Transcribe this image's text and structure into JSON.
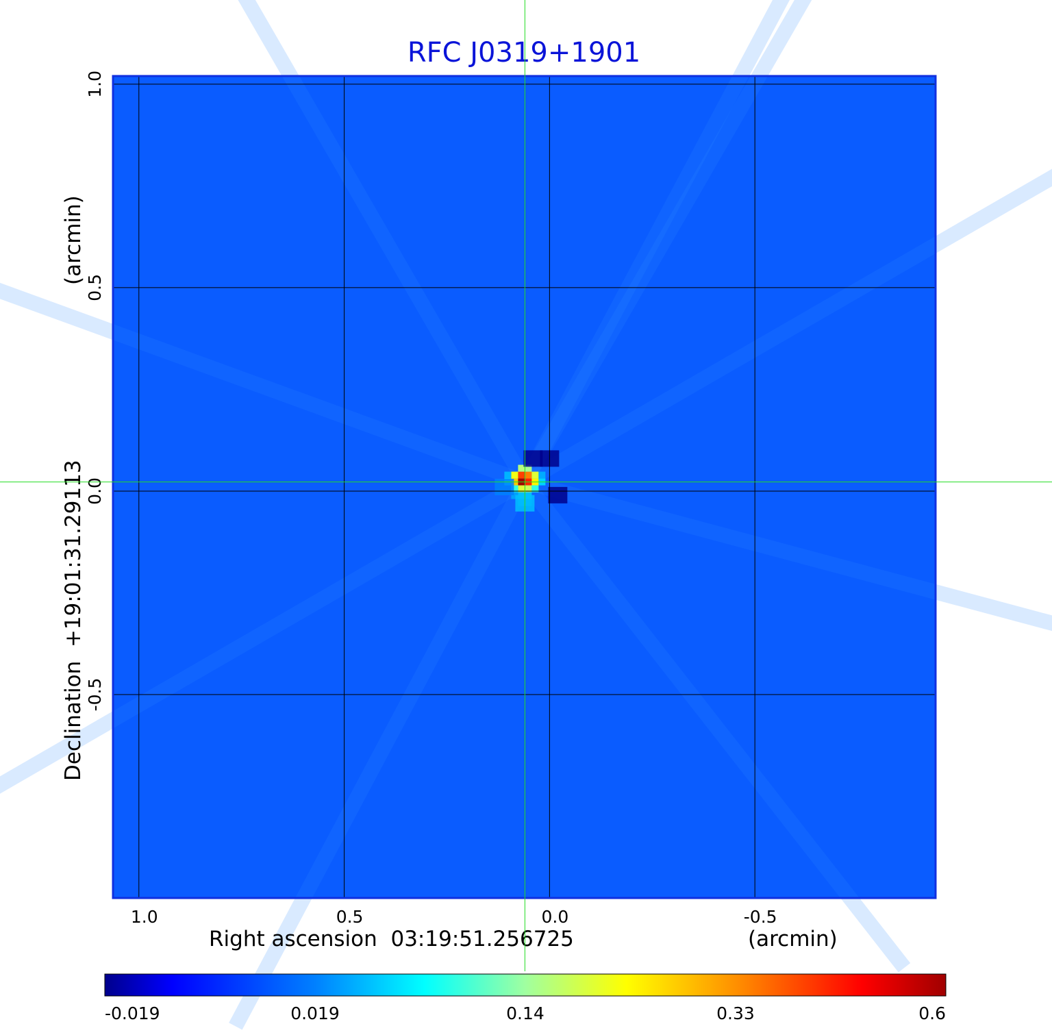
{
  "chart_data": {
    "type": "heatmap",
    "title": "RFC J0319+1901",
    "title_color": "#0a14d8",
    "xlabel": "Right ascension  03:19:51.256725",
    "xlabel_unit": "(arcmin)",
    "ylabel": "Declination  +19:01:31.29113",
    "ylabel_unit": "(arcmin)",
    "x_ticks": [
      {
        "value": 1.0,
        "label": "1.0"
      },
      {
        "value": 0.5,
        "label": "0.5"
      },
      {
        "value": 0.0,
        "label": "0.0"
      },
      {
        "value": -0.5,
        "label": "-0.5"
      }
    ],
    "y_ticks": [
      {
        "value": 1.0,
        "label": "1.0"
      },
      {
        "value": 0.5,
        "label": "0.5"
      },
      {
        "value": 0.0,
        "label": "0.0"
      },
      {
        "value": -0.5,
        "label": "-0.5"
      }
    ],
    "xlim": [
      1.063,
      -0.94
    ],
    "ylim": [
      -1.0,
      1.02
    ],
    "grid": true,
    "grid_color": "#000000",
    "crosshair": {
      "x": 0.06,
      "y": 0.0225,
      "color": "#22dd22"
    },
    "background_value": 0.0,
    "background_color": "#0a5cff",
    "peak": {
      "x": 0.06,
      "y": 0.0225,
      "value": 0.6
    },
    "features": [
      {
        "x": 0.04,
        "y": 0.08,
        "value": -0.019
      },
      {
        "x": 0.0,
        "y": 0.08,
        "value": -0.019
      },
      {
        "x": -0.02,
        "y": -0.01,
        "value": -0.019
      },
      {
        "x": 0.11,
        "y": 0.01,
        "value": 0.019
      },
      {
        "x": 0.06,
        "y": -0.03,
        "value": 0.05
      }
    ],
    "colorbar": {
      "tick_labels": [
        "-0.019",
        "0.019",
        "0.14",
        "0.33",
        "0.6"
      ],
      "tick_fractions": [
        0,
        0.25,
        0.5,
        0.75,
        1
      ],
      "stops": [
        {
          "offset": 0.0,
          "color": "#00008c"
        },
        {
          "offset": 0.08,
          "color": "#0000ff"
        },
        {
          "offset": 0.25,
          "color": "#0080ff"
        },
        {
          "offset": 0.38,
          "color": "#00ffff"
        },
        {
          "offset": 0.5,
          "color": "#a0ffa0"
        },
        {
          "offset": 0.62,
          "color": "#ffff00"
        },
        {
          "offset": 0.75,
          "color": "#ff9000"
        },
        {
          "offset": 0.9,
          "color": "#ff0000"
        },
        {
          "offset": 1.0,
          "color": "#a00000"
        }
      ]
    }
  }
}
